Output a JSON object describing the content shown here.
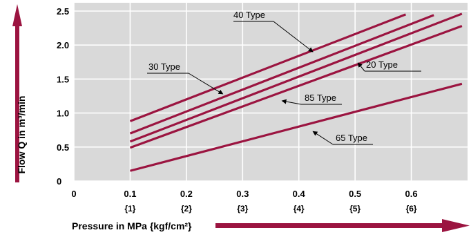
{
  "chart_data": {
    "type": "line",
    "xlabel": "Pressure in MPa {kgf/cm²}",
    "ylabel": "Flow Q in m³/min",
    "xlim": [
      0,
      0.7
    ],
    "ylim": [
      0,
      2.5
    ],
    "x_ticks": [
      "0",
      "0.1",
      "0.2",
      "0.3",
      "0.4",
      "0.5",
      "0.6"
    ],
    "x_sub_ticks": [
      "{1}",
      "{2}",
      "{3}",
      "{4}",
      "{5}",
      "{6}"
    ],
    "y_ticks": [
      "0",
      "0.5",
      "1.0",
      "1.5",
      "2.0",
      "2.5"
    ],
    "grid": true,
    "colors": {
      "series": "#9b1440",
      "grid": "#ffffff",
      "plot_bg": "#d9d9d9",
      "arrow": "#9b1440"
    },
    "series": [
      {
        "name": "40 Type",
        "x": [
          0.1,
          0.59
        ],
        "y": [
          0.88,
          2.45
        ]
      },
      {
        "name": "30 Type",
        "x": [
          0.1,
          0.64
        ],
        "y": [
          0.7,
          2.44
        ]
      },
      {
        "name": "20 Type",
        "x": [
          0.1,
          0.69
        ],
        "y": [
          0.58,
          2.46
        ]
      },
      {
        "name": "85 Type",
        "x": [
          0.1,
          0.69
        ],
        "y": [
          0.49,
          2.28
        ]
      },
      {
        "name": "65 Type",
        "x": [
          0.1,
          0.69
        ],
        "y": [
          0.15,
          1.43
        ]
      }
    ],
    "annotations": [
      {
        "text": "40 Type",
        "points_to": [
          0.425,
          1.9
        ]
      },
      {
        "text": "30 Type",
        "points_to": [
          0.265,
          1.28
        ]
      },
      {
        "text": "20 Type",
        "points_to": [
          0.505,
          1.74
        ]
      },
      {
        "text": "85 Type",
        "points_to": [
          0.37,
          1.18
        ]
      },
      {
        "text": "65 Type",
        "points_to": [
          0.425,
          0.73
        ]
      }
    ]
  }
}
